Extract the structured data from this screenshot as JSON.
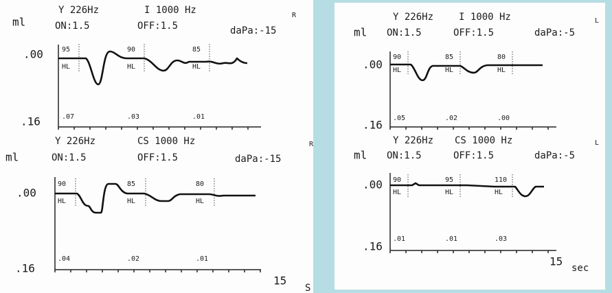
{
  "panels": [
    {
      "charts": [
        {
          "side": "R",
          "unit": "ml",
          "probe": "Y 226Hz",
          "stimulus": "I 1000 Hz",
          "on": "ON:1.5",
          "off": "OFF:1.5",
          "pressure": "daPa:-15",
          "y_top": ".00",
          "y_bottom": ".16",
          "levels": [
            "95",
            "90",
            "85"
          ],
          "hl": "HL",
          "decay": [
            ".07",
            ".03",
            ".01"
          ]
        },
        {
          "side": "R",
          "unit": "ml",
          "probe": "Y 226Hz",
          "stimulus": "CS 1000 Hz",
          "on": "ON:1.5",
          "off": "OFF:1.5",
          "pressure": "daPa:-15",
          "y_top": ".00",
          "y_bottom": ".16",
          "levels": [
            "90",
            "85",
            "80"
          ],
          "hl": "HL",
          "decay": [
            ".04",
            ".02",
            ".01"
          ]
        }
      ],
      "time": "15",
      "time_unit": "S"
    },
    {
      "charts": [
        {
          "side": "L",
          "unit": "ml",
          "probe": "Y 226Hz",
          "stimulus": "I 1000 Hz",
          "on": "ON:1.5",
          "off": "OFF:1.5",
          "pressure": "daPa:-5",
          "y_top": ".00",
          "y_bottom": ".16",
          "levels": [
            "90",
            "85",
            "80"
          ],
          "hl": "HL",
          "decay": [
            ".05",
            ".02",
            ".00"
          ]
        },
        {
          "side": "L",
          "unit": "ml",
          "probe": "Y 226Hz",
          "stimulus": "CS 1000 Hz",
          "on": "ON:1.5",
          "off": "OFF:1.5",
          "pressure": "daPa:-5",
          "y_top": ".00",
          "y_bottom": ".16",
          "levels": [
            "90",
            "95",
            "110"
          ],
          "hl": "HL",
          "decay": [
            ".01",
            ".01",
            ".03"
          ]
        }
      ],
      "time": "15",
      "time_unit": "sec"
    }
  ]
}
